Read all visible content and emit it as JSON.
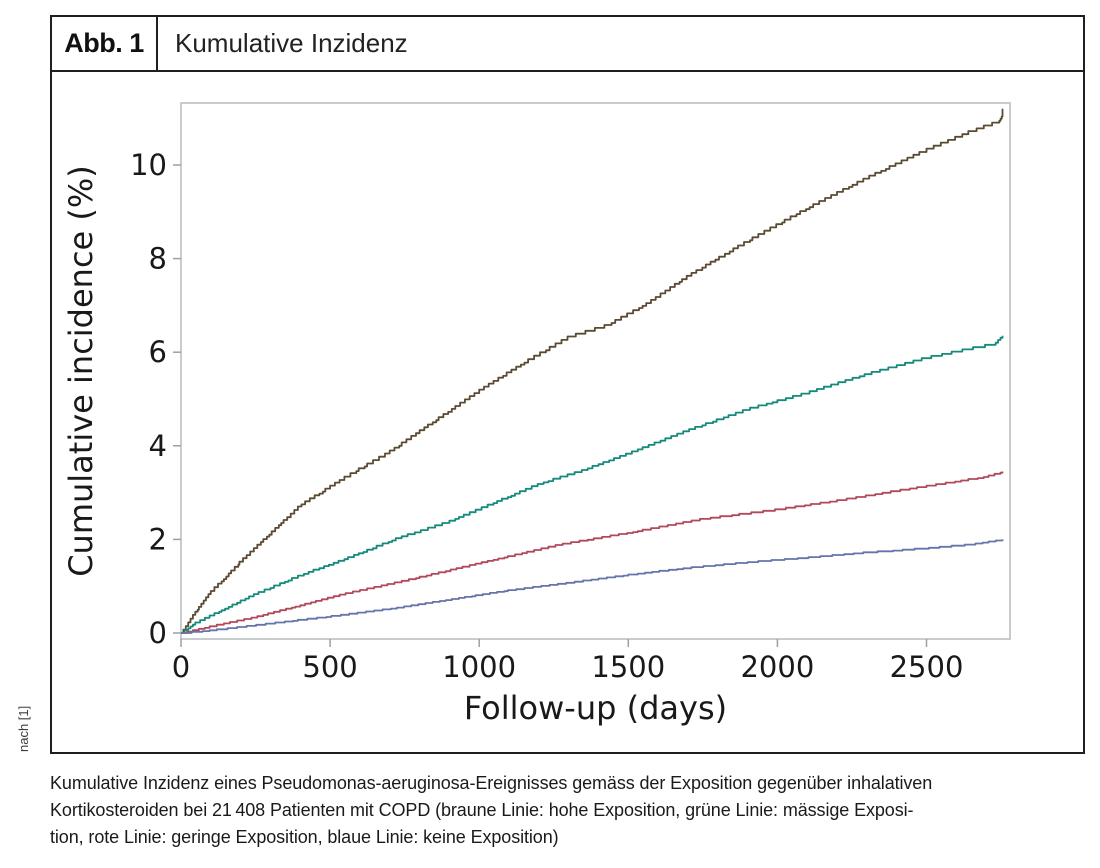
{
  "figure": {
    "label": "Abb. 1",
    "title": "Kumulative Inzidenz",
    "source_note": "nach [1]"
  },
  "caption": {
    "text": "Kumulative Inzidenz eines Pseudomonas-aeruginosa-Ereignisses gemäss der Exposition gegenüber inhalativen Kortikosteroiden bei 21 408 Patienten mit COPD (braune Linie: hohe Exposition, grüne Linie: mässige Exposition, rote Linie: geringe Exposition, blaue Linie: keine Exposition)",
    "lines": [
      "Kumulative Inzidenz eines Pseudomonas-aeruginosa-Ereignisses gemäss der Exposition gegenüber inhalativen",
      "Kortikosteroiden bei 21 408 Patienten mit COPD (braune Linie: hohe Exposition, grüne Linie: mässige Exposi-",
      "tion, rote Linie: geringe Exposition, blaue Linie: keine Exposition)"
    ]
  },
  "chart_data": {
    "type": "line",
    "curve_style": "step-cumulative-incidence",
    "title": "Kumulative Inzidenz",
    "xlabel": "Follow-up (days)",
    "ylabel": "Cumulative incidence (%)",
    "xlim": [
      0,
      2780
    ],
    "ylim": [
      0,
      11.32
    ],
    "x_ticks": [
      0,
      500,
      1000,
      1500,
      2000,
      2500
    ],
    "y_ticks": [
      0,
      2,
      4,
      6,
      8,
      10
    ],
    "grid": false,
    "legend_position": "none (line colors explained in caption)",
    "frame_color": "#b6bcbe",
    "tick_color": "#9ba1a4",
    "text_color": "#191919",
    "series": [
      {
        "name": "hohe Exposition",
        "color_name": "braune Linie",
        "color": "#5a4a32",
        "step_increment_pct": 0.06,
        "seed": 11,
        "points": [
          [
            0,
            0
          ],
          [
            30,
            0.3
          ],
          [
            100,
            0.9
          ],
          [
            200,
            1.55
          ],
          [
            300,
            2.15
          ],
          [
            400,
            2.75
          ],
          [
            550,
            3.35
          ],
          [
            700,
            3.9
          ],
          [
            850,
            4.55
          ],
          [
            1000,
            5.2
          ],
          [
            1150,
            5.8
          ],
          [
            1300,
            6.35
          ],
          [
            1430,
            6.6
          ],
          [
            1560,
            7.05
          ],
          [
            1700,
            7.65
          ],
          [
            1900,
            8.4
          ],
          [
            2100,
            9.1
          ],
          [
            2300,
            9.75
          ],
          [
            2500,
            10.35
          ],
          [
            2650,
            10.75
          ],
          [
            2740,
            10.95
          ],
          [
            2755,
            11.2
          ]
        ]
      },
      {
        "name": "mässige Exposition",
        "color_name": "grüne Linie",
        "color": "#15897a",
        "step_increment_pct": 0.045,
        "seed": 22,
        "points": [
          [
            0,
            0
          ],
          [
            40,
            0.2
          ],
          [
            120,
            0.45
          ],
          [
            250,
            0.85
          ],
          [
            400,
            1.25
          ],
          [
            550,
            1.6
          ],
          [
            730,
            2.05
          ],
          [
            900,
            2.4
          ],
          [
            1050,
            2.8
          ],
          [
            1200,
            3.2
          ],
          [
            1350,
            3.5
          ],
          [
            1500,
            3.85
          ],
          [
            1700,
            4.35
          ],
          [
            1900,
            4.8
          ],
          [
            2100,
            5.15
          ],
          [
            2300,
            5.55
          ],
          [
            2500,
            5.9
          ],
          [
            2650,
            6.1
          ],
          [
            2730,
            6.2
          ],
          [
            2755,
            6.35
          ]
        ]
      },
      {
        "name": "geringe Exposition",
        "color_name": "rote Linie",
        "color": "#b04a5a",
        "step_increment_pct": 0.03,
        "seed": 33,
        "points": [
          [
            0,
            0
          ],
          [
            100,
            0.15
          ],
          [
            250,
            0.35
          ],
          [
            400,
            0.6
          ],
          [
            550,
            0.85
          ],
          [
            730,
            1.1
          ],
          [
            900,
            1.35
          ],
          [
            1100,
            1.65
          ],
          [
            1270,
            1.9
          ],
          [
            1500,
            2.15
          ],
          [
            1750,
            2.45
          ],
          [
            2000,
            2.65
          ],
          [
            2210,
            2.85
          ],
          [
            2400,
            3.05
          ],
          [
            2550,
            3.2
          ],
          [
            2700,
            3.35
          ],
          [
            2755,
            3.45
          ]
        ]
      },
      {
        "name": "keine Exposition",
        "color_name": "blaue Linie",
        "color": "#6375ac",
        "step_increment_pct": 0.022,
        "seed": 44,
        "points": [
          [
            0,
            0
          ],
          [
            150,
            0.1
          ],
          [
            350,
            0.25
          ],
          [
            550,
            0.4
          ],
          [
            730,
            0.55
          ],
          [
            900,
            0.72
          ],
          [
            1100,
            0.92
          ],
          [
            1300,
            1.08
          ],
          [
            1500,
            1.25
          ],
          [
            1700,
            1.4
          ],
          [
            1900,
            1.52
          ],
          [
            2100,
            1.62
          ],
          [
            2300,
            1.73
          ],
          [
            2500,
            1.82
          ],
          [
            2650,
            1.9
          ],
          [
            2755,
            2.0
          ]
        ]
      }
    ]
  }
}
